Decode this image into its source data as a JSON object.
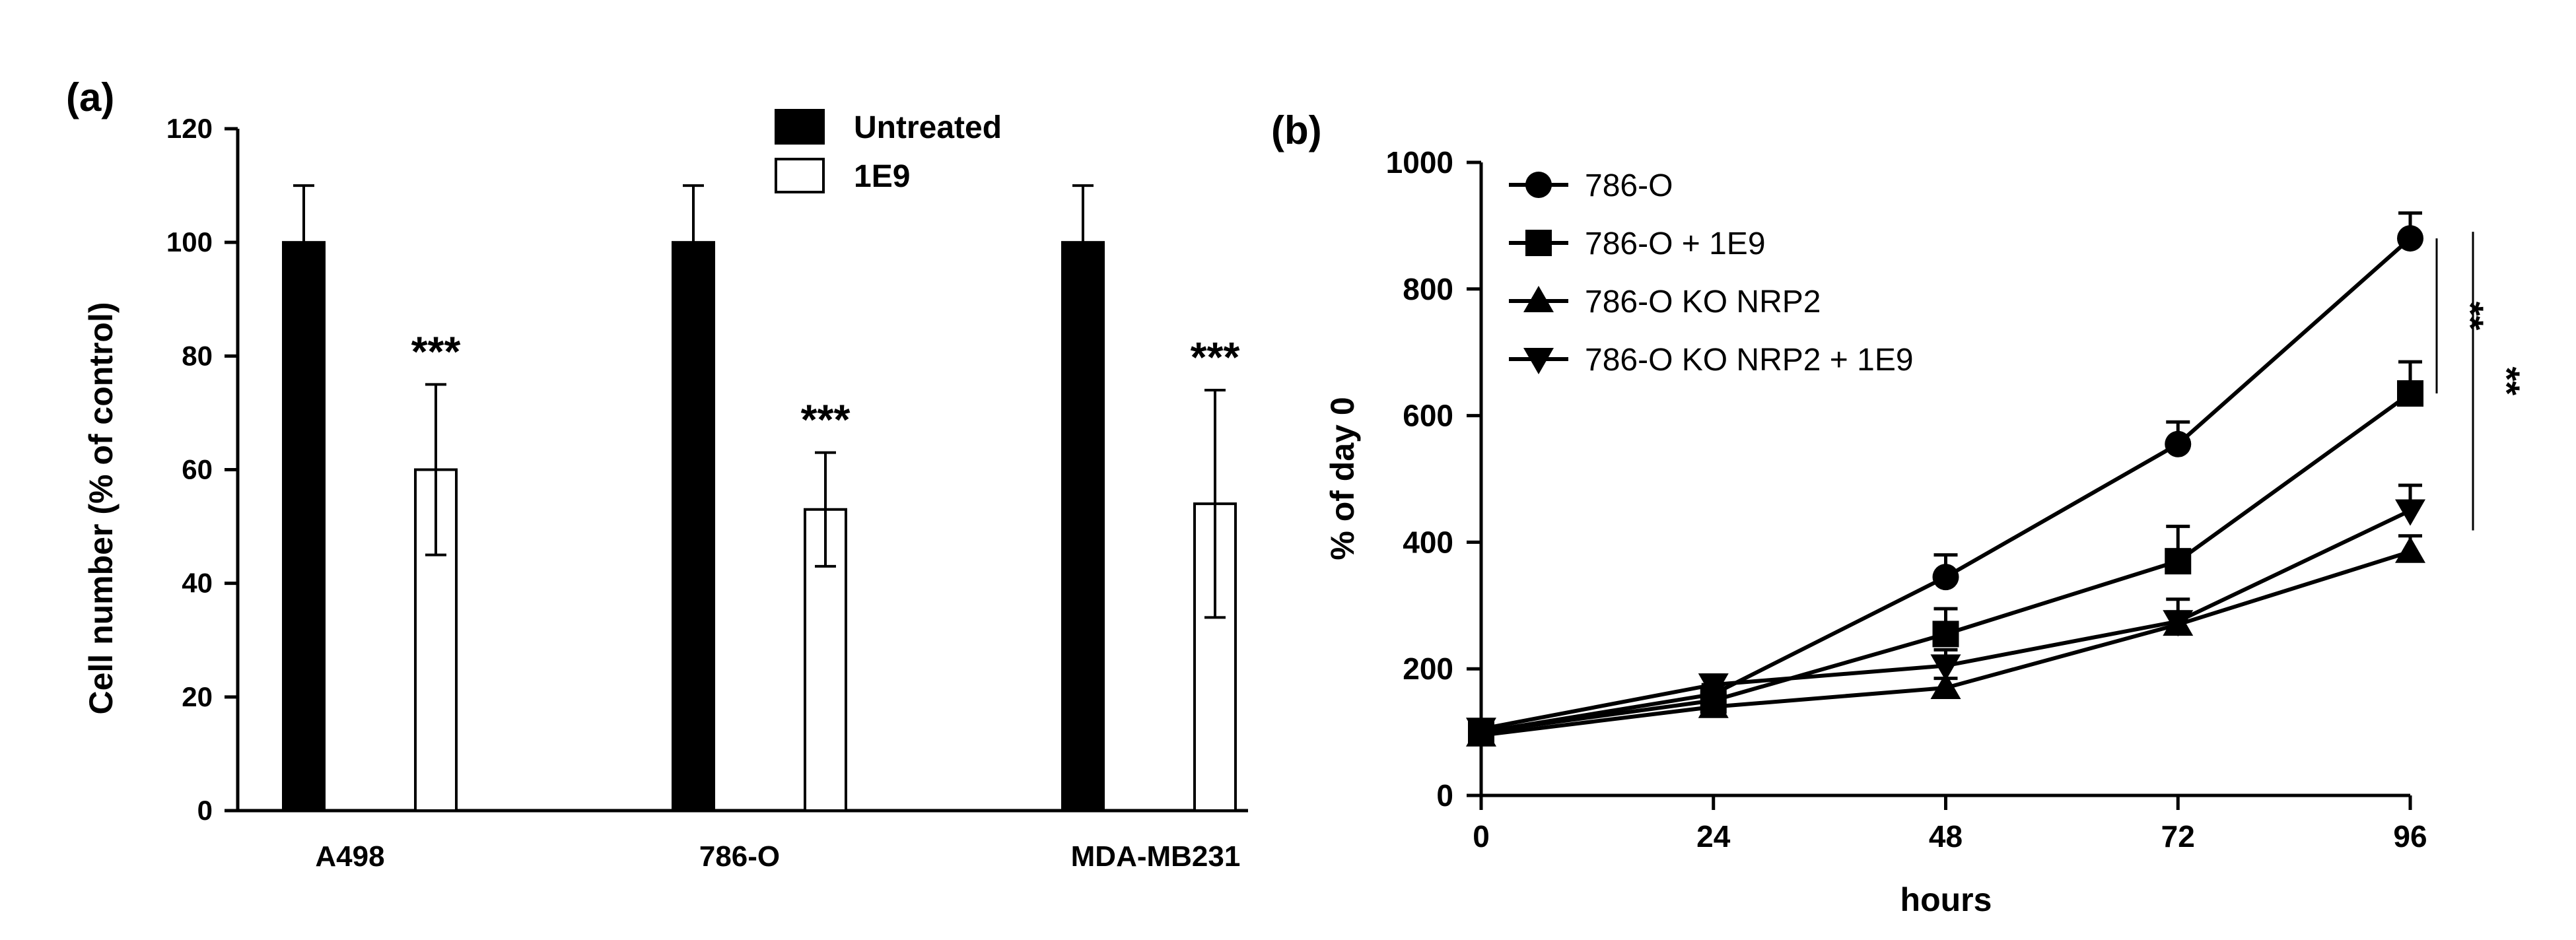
{
  "chart_data": [
    {
      "type": "bar",
      "panel_label": "(a)",
      "title": "",
      "xlabel": "",
      "ylabel": "Cell number (% of control)",
      "ylim": [
        0,
        120
      ],
      "yticks": [
        0,
        20,
        40,
        60,
        80,
        100,
        120
      ],
      "categories": [
        "A498",
        "786-O",
        "MDA-MB231"
      ],
      "series": [
        {
          "name": "Untreated",
          "fill": "#000000",
          "values": [
            100,
            100,
            100
          ],
          "errors": [
            10,
            10,
            10
          ]
        },
        {
          "name": "1E9",
          "fill": "#ffffff",
          "values": [
            60,
            53,
            54
          ],
          "errors": [
            15,
            10,
            20
          ]
        }
      ],
      "annotations": [
        "***",
        "***",
        "***"
      ],
      "legend_position": "top-center"
    },
    {
      "type": "line",
      "panel_label": "(b)",
      "title": "",
      "xlabel": "hours",
      "ylabel": "% of day 0",
      "x": [
        0,
        24,
        48,
        72,
        96
      ],
      "xlim": [
        0,
        96
      ],
      "ylim": [
        0,
        1000
      ],
      "yticks": [
        0,
        200,
        400,
        600,
        800,
        1000
      ],
      "series": [
        {
          "name": "786-O",
          "marker": "circle",
          "values": [
            100,
            160,
            345,
            555,
            880
          ],
          "errors": [
            10,
            15,
            35,
            35,
            40
          ]
        },
        {
          "name": "786-O + 1E9",
          "marker": "square",
          "values": [
            100,
            150,
            255,
            370,
            635
          ],
          "errors": [
            10,
            15,
            40,
            55,
            50
          ]
        },
        {
          "name": "786-O KO NRP2",
          "marker": "triangle-up",
          "values": [
            95,
            140,
            170,
            270,
            385
          ],
          "errors": [
            8,
            10,
            15,
            20,
            25
          ]
        },
        {
          "name": "786-O KO NRP2 + 1E9",
          "marker": "triangle-down",
          "values": [
            105,
            175,
            205,
            275,
            450
          ],
          "errors": [
            10,
            15,
            25,
            35,
            40
          ]
        }
      ],
      "significance": [
        "**",
        "**"
      ],
      "legend_position": "top-left"
    }
  ]
}
